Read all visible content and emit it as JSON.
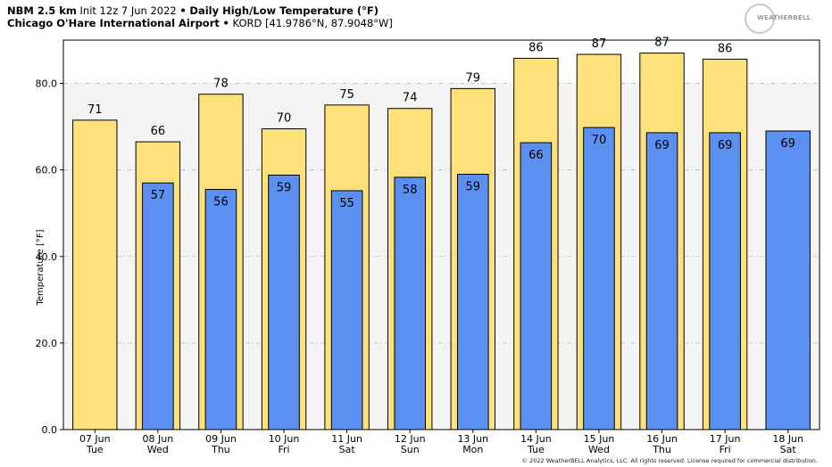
{
  "header": {
    "model": "NBM 2.5 km",
    "init": "Init 12z 7 Jun 2022",
    "product": "Daily High/Low Temperature (°F)",
    "station_name": "Chicago O'Hare International Airport",
    "station_id": "KORD [41.9786°N, 87.9048°W]",
    "separator": "•"
  },
  "logo_text": "WEATHERBELL",
  "copyright": "© 2022 WeatherBELL Analytics, LLC. All rights reserved. License required for commercial distribution.",
  "colors": {
    "high": "#fee17a",
    "low": "#5b8ff0",
    "plot_bg": "#f4f4f4",
    "grid": "#bbbbbb"
  },
  "chart_data": {
    "type": "bar",
    "ylabel": "Temperature [°F]",
    "ylim": [
      0,
      90
    ],
    "yticks": [
      0,
      20,
      40,
      60,
      80
    ],
    "ytick_labels": [
      "0.0",
      "20.0",
      "40.0",
      "60.0",
      "80.0"
    ],
    "categories": [
      [
        "07 Jun",
        "Tue"
      ],
      [
        "08 Jun",
        "Wed"
      ],
      [
        "09 Jun",
        "Thu"
      ],
      [
        "10 Jun",
        "Fri"
      ],
      [
        "11 Jun",
        "Sat"
      ],
      [
        "12 Jun",
        "Sun"
      ],
      [
        "13 Jun",
        "Mon"
      ],
      [
        "14 Jun",
        "Tue"
      ],
      [
        "15 Jun",
        "Wed"
      ],
      [
        "16 Jun",
        "Thu"
      ],
      [
        "17 Jun",
        "Fri"
      ],
      [
        "18 Jun",
        "Sat"
      ]
    ],
    "series": [
      {
        "key": "high",
        "values": [
          71,
          66,
          78,
          70,
          75,
          74,
          79,
          86,
          87,
          87,
          86,
          null
        ],
        "exact": [
          71.5,
          66.5,
          77.5,
          69.5,
          75.0,
          74.2,
          78.8,
          85.8,
          86.7,
          87.0,
          85.6,
          null
        ]
      },
      {
        "key": "low",
        "values": [
          null,
          57,
          56,
          59,
          55,
          58,
          59,
          66,
          70,
          69,
          69,
          69
        ],
        "exact": [
          null,
          57.0,
          55.5,
          58.8,
          55.2,
          58.3,
          59.0,
          66.3,
          69.8,
          68.6,
          68.6,
          69.0
        ]
      }
    ],
    "grid": "horizontal dashed"
  }
}
